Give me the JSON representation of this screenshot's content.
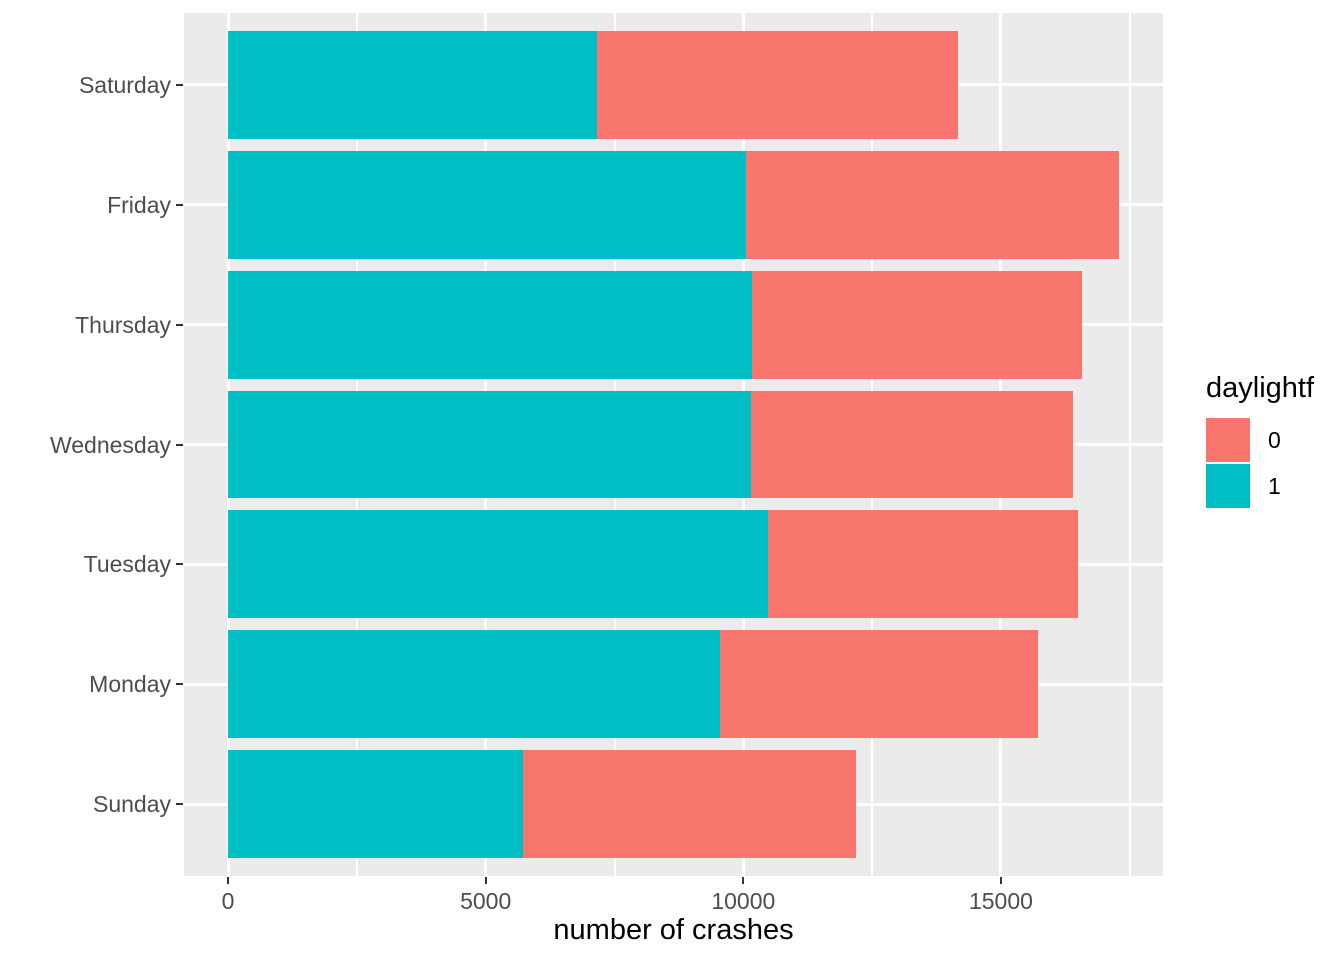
{
  "chart_data": {
    "type": "bar",
    "orientation": "horizontal",
    "stacked": true,
    "title": "",
    "xlabel": "number of crashes",
    "ylabel": "",
    "categories": [
      "Saturday",
      "Friday",
      "Thursday",
      "Wednesday",
      "Tuesday",
      "Monday",
      "Sunday"
    ],
    "series": [
      {
        "name": "1",
        "color": "#00BFC4",
        "values": [
          7170,
          10060,
          10170,
          10140,
          10480,
          9550,
          5730
        ]
      },
      {
        "name": "0",
        "color": "#F8766D",
        "values": [
          7000,
          7230,
          6410,
          6260,
          6020,
          6160,
          6460
        ]
      }
    ],
    "totals": [
      14170,
      17290,
      16580,
      16400,
      16500,
      15710,
      12190
    ],
    "x_ticks": [
      0,
      5000,
      10000,
      15000
    ],
    "x_tick_labels": [
      "0",
      "5000",
      "10000",
      "15000"
    ],
    "x_minor_ticks": [
      2500,
      7500,
      12500,
      17500
    ],
    "xlim": [
      -855,
      18145
    ],
    "grid": true,
    "legend": {
      "title": "daylightf",
      "position": "right",
      "entries": [
        {
          "label": "0",
          "color": "#F8766D"
        },
        {
          "label": "1",
          "color": "#00BFC4"
        }
      ]
    },
    "colors": {
      "panel_background": "#EBEBEB",
      "gridline": "#FFFFFF",
      "axis_text": "#4D4D4D",
      "tick_mark": "#333333",
      "title_text": "#000000"
    }
  }
}
